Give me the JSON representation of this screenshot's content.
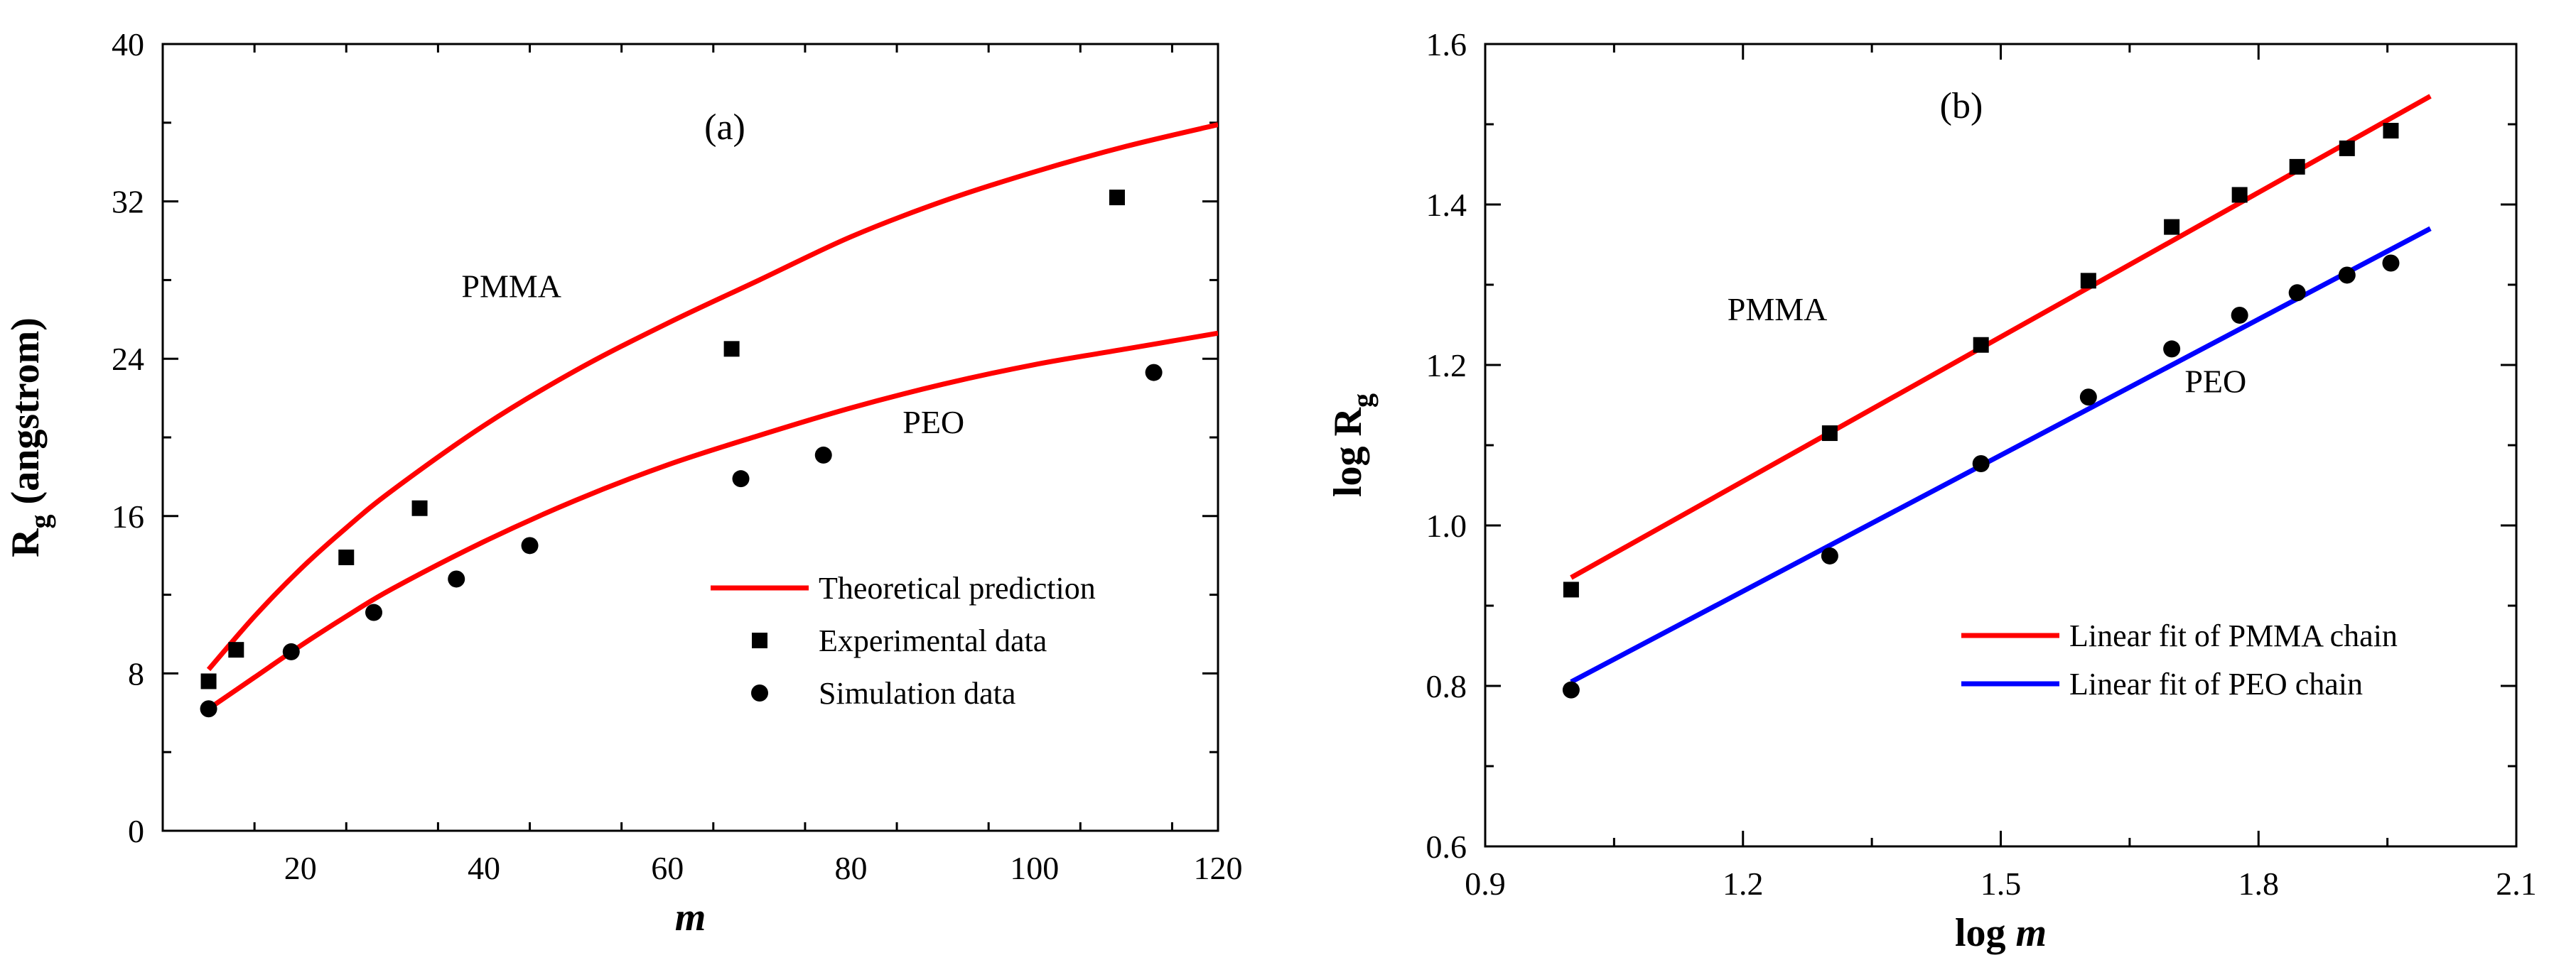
{
  "chart_data": [
    {
      "type": "line",
      "panel_label": "(a)",
      "xlabel": "m",
      "ylabel": "R",
      "ylabel_sub": "g",
      "ylabel_suffix": " (angstrom)",
      "xlim": [
        5,
        120
      ],
      "ylim": [
        0,
        40
      ],
      "x_ticks": [
        20,
        40,
        60,
        80,
        100,
        120
      ],
      "y_ticks": [
        0,
        8,
        16,
        24,
        32,
        40
      ],
      "grid": false,
      "legend_position": "lower-right",
      "annotations": [
        {
          "text": "PMMA",
          "x": 43,
          "y": 27.7
        },
        {
          "text": "PEO",
          "x": 89,
          "y": 20.8
        }
      ],
      "series": [
        {
          "name": "Theoretical prediction",
          "kind": "line",
          "color": "#ff0000",
          "x": [
            10,
            15,
            20,
            25,
            30,
            40,
            50,
            60,
            70,
            80,
            90,
            100,
            110,
            120
          ],
          "y": [
            8.2,
            10.9,
            13.3,
            15.4,
            17.3,
            20.6,
            23.4,
            25.8,
            28.0,
            30.2,
            32.0,
            33.5,
            34.8,
            35.9
          ]
        },
        {
          "name": "",
          "kind": "line",
          "color": "#ff0000",
          "x": [
            10,
            15,
            20,
            25,
            30,
            40,
            50,
            60,
            70,
            80,
            90,
            100,
            110,
            120
          ],
          "y": [
            6.2,
            7.8,
            9.4,
            10.9,
            12.3,
            14.7,
            16.8,
            18.6,
            20.1,
            21.5,
            22.7,
            23.7,
            24.5,
            25.3
          ]
        },
        {
          "name": "Experimental data",
          "kind": "square",
          "color": "#000000",
          "x": [
            10,
            13,
            25,
            33,
            67,
            109
          ],
          "y": [
            7.6,
            9.2,
            13.9,
            16.4,
            24.5,
            32.2
          ]
        },
        {
          "name": "Simulation data",
          "kind": "circle",
          "color": "#000000",
          "x": [
            10,
            19,
            28,
            37,
            45,
            68,
            77,
            113
          ],
          "y": [
            6.2,
            9.1,
            11.1,
            12.8,
            14.5,
            17.9,
            19.1,
            23.3
          ]
        }
      ]
    },
    {
      "type": "line",
      "panel_label": "(b)",
      "xlabel": "log m",
      "xlabel_prefix": "log ",
      "xlabel_var": "m",
      "ylabel": "log R",
      "ylabel_sub": "g",
      "ylabel_suffix": "",
      "xlim": [
        0.9,
        2.1
      ],
      "ylim": [
        0.6,
        1.6
      ],
      "x_ticks": [
        0.9,
        1.2,
        1.5,
        1.8,
        2.1
      ],
      "y_ticks": [
        0.6,
        0.8,
        1.0,
        1.2,
        1.4,
        1.6
      ],
      "grid": false,
      "legend_position": "lower-right",
      "annotations": [
        {
          "text": "PMMA",
          "x": 1.24,
          "y": 1.27
        },
        {
          "text": "PEO",
          "x": 1.75,
          "y": 1.18
        }
      ],
      "series": [
        {
          "name": "Linear fit of PMMA chain",
          "kind": "line",
          "color": "#ff0000",
          "x": [
            1.0,
            2.0
          ],
          "y": [
            0.935,
            1.535
          ]
        },
        {
          "name": "Linear fit of PEO chain",
          "kind": "line",
          "color": "#0000ff",
          "x": [
            1.0,
            2.0
          ],
          "y": [
            0.805,
            1.37
          ]
        },
        {
          "name": "",
          "kind": "square",
          "color": "#000000",
          "x": [
            1.0,
            1.301,
            1.477,
            1.602,
            1.699,
            1.778,
            1.845,
            1.903,
            1.954
          ],
          "y": [
            0.92,
            1.115,
            1.225,
            1.305,
            1.372,
            1.412,
            1.447,
            1.47,
            1.492
          ]
        },
        {
          "name": "",
          "kind": "circle",
          "color": "#000000",
          "x": [
            1.0,
            1.301,
            1.477,
            1.602,
            1.699,
            1.778,
            1.845,
            1.903,
            1.954
          ],
          "y": [
            0.795,
            0.962,
            1.077,
            1.16,
            1.22,
            1.262,
            1.29,
            1.312,
            1.327
          ]
        }
      ]
    }
  ]
}
